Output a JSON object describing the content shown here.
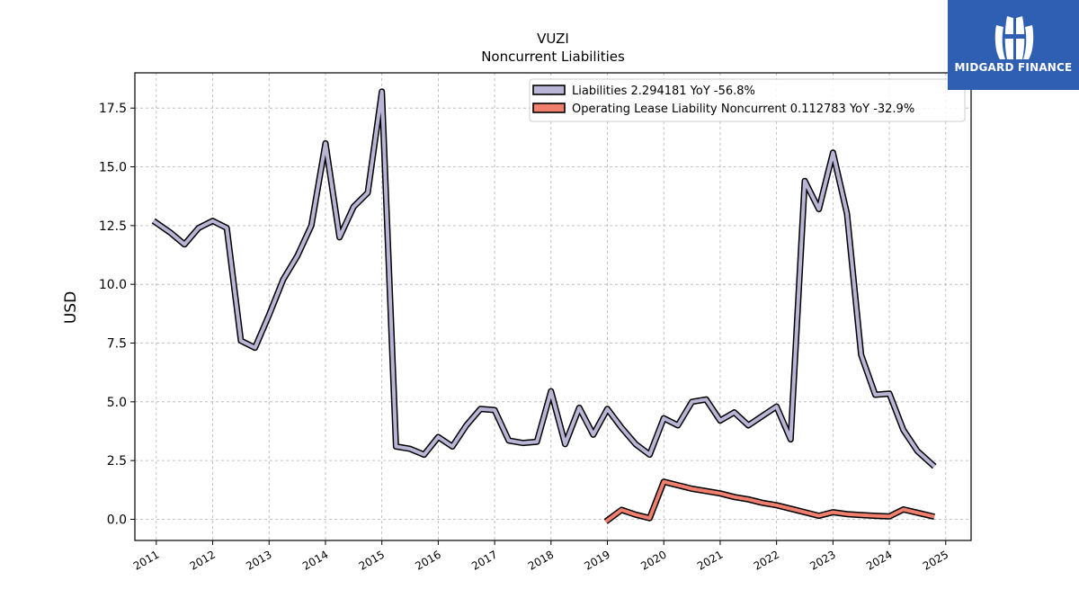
{
  "logo": {
    "text": "MIDGARD FINANCE",
    "icon": "midgard-logo-icon",
    "background": "#2f5fb3"
  },
  "chart_data": {
    "type": "line",
    "title": "VUZI",
    "subtitle": "Noncurrent  Liabilities",
    "xlabel": "",
    "ylabel": "USD",
    "xlim": [
      2010.62,
      2025.45
    ],
    "ylim": [
      -0.9,
      19.0
    ],
    "x_ticks": [
      2011,
      2012,
      2013,
      2014,
      2015,
      2016,
      2017,
      2018,
      2019,
      2020,
      2021,
      2022,
      2023,
      2024,
      2025
    ],
    "x_tick_labels": [
      "2011",
      "2012",
      "2013",
      "2014",
      "2015",
      "2016",
      "2017",
      "2018",
      "2019",
      "2020",
      "2021",
      "2022",
      "2023",
      "2024",
      "2025"
    ],
    "y_ticks": [
      0.0,
      2.5,
      5.0,
      7.5,
      10.0,
      12.5,
      15.0,
      17.5
    ],
    "y_tick_labels": [
      "0.0",
      "2.5",
      "5.0",
      "7.5",
      "10.0",
      "12.5",
      "15.0",
      "17.5"
    ],
    "grid": true,
    "legend_position": "top-right",
    "series": [
      {
        "name": "Liabilities",
        "legend_label": "Liabilities  2.294181 YoY -56.8%",
        "color": "#b8b5d6",
        "x": [
          2010.95,
          2011.25,
          2011.5,
          2011.75,
          2012.0,
          2012.25,
          2012.5,
          2012.75,
          2013.0,
          2013.25,
          2013.5,
          2013.75,
          2014.0,
          2014.25,
          2014.5,
          2014.75,
          2015.0,
          2015.25,
          2015.5,
          2015.75,
          2016.0,
          2016.25,
          2016.5,
          2016.75,
          2017.0,
          2017.25,
          2017.5,
          2017.75,
          2018.0,
          2018.25,
          2018.5,
          2018.75,
          2019.0,
          2019.25,
          2019.5,
          2019.75,
          2020.0,
          2020.25,
          2020.5,
          2020.75,
          2021.0,
          2021.25,
          2021.5,
          2021.75,
          2022.0,
          2022.25,
          2022.5,
          2022.75,
          2023.0,
          2023.25,
          2023.5,
          2023.75,
          2024.0,
          2024.25,
          2024.5,
          2024.8
        ],
        "y": [
          12.7,
          12.2,
          11.7,
          12.4,
          12.7,
          12.4,
          7.6,
          7.3,
          8.7,
          10.2,
          11.2,
          12.5,
          16.0,
          12.0,
          13.3,
          13.9,
          18.2,
          3.1,
          3.0,
          2.75,
          3.5,
          3.1,
          4.0,
          4.7,
          4.65,
          3.35,
          3.25,
          3.3,
          5.45,
          3.2,
          4.75,
          3.6,
          4.7,
          3.9,
          3.2,
          2.75,
          4.3,
          4.0,
          5.0,
          5.1,
          4.2,
          4.55,
          4.0,
          4.4,
          4.8,
          3.4,
          14.4,
          13.2,
          15.6,
          13.0,
          7.0,
          5.3,
          5.35,
          3.8,
          2.9,
          2.25
        ]
      },
      {
        "name": "Operating Lease Liability Noncurrent",
        "legend_label": "Operating Lease Liability Noncurrent  0.112783 YoY -32.9%",
        "color": "#f07f6e",
        "x": [
          2018.97,
          2019.25,
          2019.5,
          2019.75,
          2020.0,
          2020.25,
          2020.5,
          2020.75,
          2021.0,
          2021.25,
          2021.5,
          2021.75,
          2022.0,
          2022.25,
          2022.5,
          2022.75,
          2023.0,
          2023.25,
          2023.5,
          2023.75,
          2024.0,
          2024.25,
          2024.5,
          2024.8
        ],
        "y": [
          -0.1,
          0.4,
          0.2,
          0.05,
          1.6,
          1.45,
          1.3,
          1.2,
          1.1,
          0.95,
          0.85,
          0.7,
          0.6,
          0.45,
          0.3,
          0.15,
          0.3,
          0.22,
          0.18,
          0.15,
          0.12,
          0.42,
          0.28,
          0.11
        ]
      }
    ]
  }
}
